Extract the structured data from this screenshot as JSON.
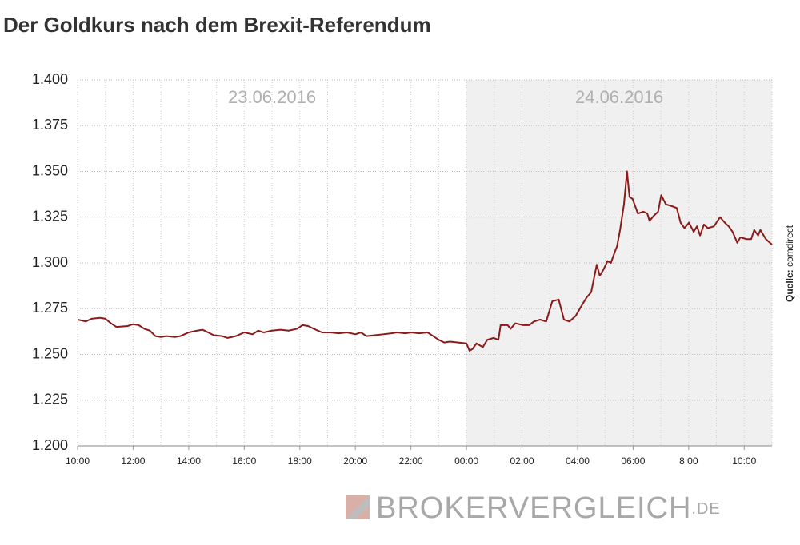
{
  "chart_data": {
    "type": "line",
    "title": "Der Goldkurs nach dem Brexit-Referendum",
    "day_labels": [
      "23.06.2016",
      "24.06.2016"
    ],
    "shaded_x": [
      24,
      35
    ],
    "source": {
      "label": "Quelle:",
      "text": "comdirect"
    },
    "watermark": {
      "name": "BROKERVERGLEICH",
      "suffix": ".DE"
    },
    "color": "#8b1a1a",
    "grid": true,
    "xlim": [
      10,
      35
    ],
    "xticks": [
      {
        "value": 10,
        "label": "10:00"
      },
      {
        "value": 12,
        "label": "12:00"
      },
      {
        "value": 14,
        "label": "14:00"
      },
      {
        "value": 16,
        "label": "16:00"
      },
      {
        "value": 18,
        "label": "18:00"
      },
      {
        "value": 20,
        "label": "20:00"
      },
      {
        "value": 22,
        "label": "22:00"
      },
      {
        "value": 24,
        "label": "00:00"
      },
      {
        "value": 26,
        "label": "02:00"
      },
      {
        "value": 28,
        "label": "04:00"
      },
      {
        "value": 30,
        "label": "06:00"
      },
      {
        "value": 32,
        "label": "8:00"
      },
      {
        "value": 34,
        "label": "10:00"
      }
    ],
    "ylim": [
      1200,
      1400
    ],
    "yticks": [
      {
        "value": 1200,
        "label": "1.200"
      },
      {
        "value": 1225,
        "label": "1.225"
      },
      {
        "value": 1250,
        "label": "1.250"
      },
      {
        "value": 1275,
        "label": "1.275"
      },
      {
        "value": 1300,
        "label": "1.300"
      },
      {
        "value": 1325,
        "label": "1.325"
      },
      {
        "value": 1350,
        "label": "1.350"
      },
      {
        "value": 1375,
        "label": "1.375"
      },
      {
        "value": 1400,
        "label": "1.400"
      }
    ],
    "x": [
      10.0,
      10.3,
      10.5,
      10.8,
      11.0,
      11.2,
      11.4,
      11.8,
      12.0,
      12.2,
      12.4,
      12.6,
      12.8,
      13.0,
      13.2,
      13.5,
      13.7,
      14.0,
      14.3,
      14.5,
      14.7,
      14.9,
      15.2,
      15.4,
      15.7,
      16.0,
      16.3,
      16.5,
      16.7,
      17.0,
      17.3,
      17.6,
      17.9,
      18.1,
      18.3,
      18.5,
      18.8,
      19.1,
      19.4,
      19.7,
      20.0,
      20.2,
      20.4,
      20.7,
      21.0,
      21.3,
      21.5,
      21.8,
      22.0,
      22.3,
      22.6,
      22.8,
      23.0,
      23.2,
      23.4,
      23.7,
      24.0,
      24.11,
      24.22,
      24.36,
      24.59,
      24.75,
      24.98,
      25.15,
      25.23,
      25.48,
      25.59,
      25.76,
      26.04,
      26.26,
      26.43,
      26.65,
      26.87,
      27.09,
      27.32,
      27.51,
      27.71,
      27.93,
      28.16,
      28.32,
      28.49,
      28.69,
      28.8,
      28.92,
      29.08,
      29.2,
      29.34,
      29.42,
      29.53,
      29.67,
      29.78,
      29.87,
      29.98,
      30.17,
      30.37,
      30.51,
      30.59,
      30.76,
      30.9,
      31.01,
      31.18,
      31.4,
      31.57,
      31.71,
      31.85,
      32.01,
      32.18,
      32.3,
      32.41,
      32.55,
      32.69,
      32.91,
      33.13,
      33.3,
      33.44,
      33.58,
      33.75,
      33.86,
      34.08,
      34.25,
      34.36,
      34.5,
      34.58,
      34.78,
      35.0
    ],
    "values": [
      1269,
      1268,
      1269.5,
      1270,
      1269.5,
      1267,
      1265,
      1265.5,
      1266.5,
      1266,
      1264,
      1263,
      1260,
      1259.5,
      1260,
      1259.5,
      1260,
      1262,
      1263,
      1263.5,
      1262,
      1260.5,
      1260,
      1259,
      1260,
      1262,
      1261,
      1263,
      1262,
      1263,
      1263.5,
      1263,
      1264,
      1266,
      1265.5,
      1264,
      1262,
      1262,
      1261.5,
      1262,
      1261,
      1262,
      1260,
      1260.5,
      1261,
      1261.5,
      1262,
      1261.5,
      1262,
      1261.5,
      1262,
      1260,
      1258,
      1256.5,
      1257,
      1256.5,
      1256,
      1252,
      1253,
      1256,
      1254,
      1258,
      1259,
      1258,
      1266,
      1266,
      1264,
      1267,
      1266,
      1266,
      1268,
      1269,
      1268,
      1279,
      1280,
      1269,
      1268,
      1271,
      1277,
      1281,
      1284,
      1299,
      1293,
      1296,
      1301,
      1300,
      1306,
      1309,
      1318,
      1332,
      1350,
      1336,
      1335,
      1327,
      1328,
      1327,
      1323,
      1326,
      1328,
      1337,
      1332,
      1331,
      1330,
      1322,
      1319,
      1322,
      1317,
      1320,
      1315,
      1321,
      1319,
      1320,
      1325,
      1322,
      1320,
      1317,
      1311,
      1314,
      1313,
      1313,
      1318,
      1315,
      1318,
      1313,
      1310
    ]
  }
}
